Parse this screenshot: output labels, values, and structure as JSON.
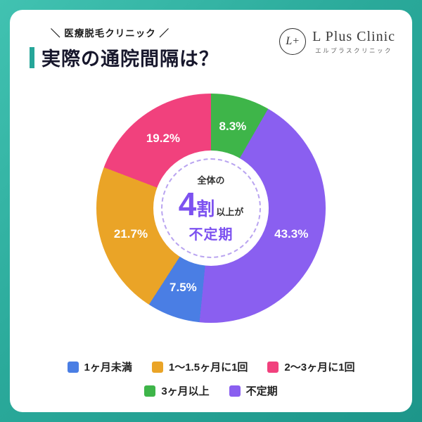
{
  "page": {
    "tagline": "＼ 医療脱毛クリニック ／",
    "title": "実際の通院間隔は？"
  },
  "logo": {
    "mark": "L+",
    "name": "L Plus Clinic",
    "name_jp": "エルプラスクリニック"
  },
  "donut_center": {
    "line1": "全体の",
    "big_number": "4",
    "big_unit": "割",
    "suffix": "以上が",
    "highlight": "不定期"
  },
  "chart_data": {
    "type": "pie",
    "donut": true,
    "title": "実際の通院間隔は？",
    "unit": "%",
    "segments": [
      {
        "label": "1ヶ月未満",
        "value": 7.5,
        "color": "#4a7ee4"
      },
      {
        "label": "1〜1.5ヶ月に1回",
        "value": 21.7,
        "color": "#eaa427"
      },
      {
        "label": "2〜3ヶ月に1回",
        "value": 19.2,
        "color": "#f1417d"
      },
      {
        "label": "3ヶ月以上",
        "value": 8.3,
        "color": "#3eb549"
      },
      {
        "label": "不定期",
        "value": 43.3,
        "color": "#8a5ff0"
      }
    ],
    "draw_order": [
      3,
      4,
      0,
      1,
      2
    ],
    "start_angle_deg": 0,
    "direction": "clockwise",
    "legend_rows": [
      [
        0,
        1,
        2
      ],
      [
        3,
        4
      ]
    ],
    "legend_position": "bottom"
  },
  "colors": {
    "background_teal": "#2aa99a",
    "accent_teal": "#26a699",
    "purple_text": "#7d52f0"
  }
}
